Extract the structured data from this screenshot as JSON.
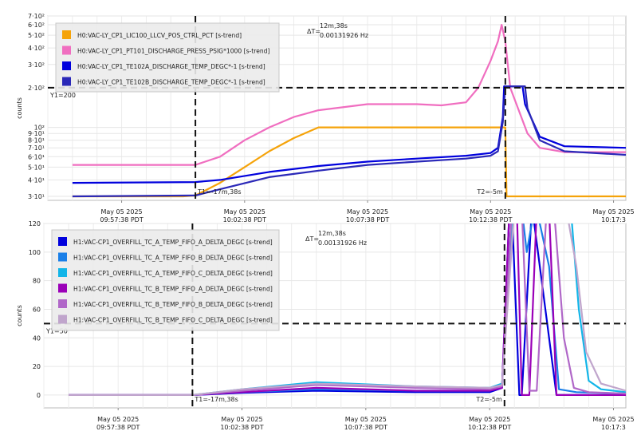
{
  "chart_data": [
    {
      "type": "line",
      "ylabel": "counts",
      "yscale": "log",
      "ylim": [
        28,
        700
      ],
      "x_tick_labels": [
        [
          "May 05 2025",
          "09:57:38 PDT"
        ],
        [
          "May 05 2025",
          "10:02:38 PDT"
        ],
        [
          "May 05 2025",
          "10:07:38 PDT"
        ],
        [
          "May 05 2025",
          "10:12:38 PDT"
        ],
        [
          "May 05 2025",
          "10:17:3"
        ]
      ],
      "y_ticks": [
        {
          "value": 30,
          "label": "3·10¹"
        },
        {
          "value": 40,
          "label": "4·10¹"
        },
        {
          "value": 50,
          "label": "5·10¹"
        },
        {
          "value": 60,
          "label": "6·10¹"
        },
        {
          "value": 70,
          "label": "7·10¹"
        },
        {
          "value": 80,
          "label": "8·10¹"
        },
        {
          "value": 90,
          "label": "9·10¹"
        },
        {
          "value": 100,
          "label": "10²"
        },
        {
          "value": 200,
          "label": "2·10²"
        },
        {
          "value": 300,
          "label": "3·10²"
        },
        {
          "value": 400,
          "label": "4·10²"
        },
        {
          "value": 500,
          "label": "5·10²"
        },
        {
          "value": 600,
          "label": "6·10²"
        },
        {
          "value": 700,
          "label": "7·10²"
        }
      ],
      "cursor_y": {
        "value": 200,
        "label": "Y1=200"
      },
      "cursor_t1_label": "T1=-17m,38s",
      "cursor_t2_label": "T2=-5m",
      "delta_label": "ΔT=",
      "delta_line1": "12m,38s",
      "delta_line2": "0.00131926 Hz",
      "series": [
        {
          "name": "H0:VAC-LY_CP1_LIC100_LLCV_POS_CTRL_PCT [s-trend]",
          "color": "#f5a30a",
          "x": [
            0,
            4.5,
            5,
            6,
            7,
            8,
            9,
            10,
            15,
            17.6,
            17.65,
            22.5
          ],
          "values": [
            30,
            30,
            30.5,
            38,
            50,
            66,
            83,
            100,
            100,
            100,
            30,
            30
          ]
        },
        {
          "name": "H0:VAC-LY_CP1_PT101_DISCHARGE_PRESS_PSIG*1000 [s-trend]",
          "color": "#f06ec0",
          "x": [
            0,
            5,
            6,
            7,
            8,
            9,
            10,
            12,
            14,
            15,
            16,
            16.5,
            17,
            17.3,
            17.45,
            17.6,
            17.8,
            18.5,
            19,
            20,
            22.5
          ],
          "values": [
            52,
            52,
            60,
            80,
            100,
            120,
            135,
            150,
            150,
            147,
            155,
            200,
            320,
            450,
            600,
            450,
            200,
            90,
            70,
            65,
            65
          ]
        },
        {
          "name": "H0:VAC-LY_CP1_TE102A_DISCHARGE_TEMP_DEGC*-1 [s-trend]",
          "color": "#0000dd",
          "x": [
            0,
            5,
            6,
            8,
            10,
            12,
            14,
            16,
            17,
            17.3,
            17.5,
            17.55,
            18.3,
            18.4,
            19,
            20,
            22.5
          ],
          "values": [
            38,
            38.5,
            40,
            46,
            51,
            55,
            58,
            61,
            64,
            70,
            120,
            205,
            205,
            150,
            85,
            72,
            70
          ]
        },
        {
          "name": "H0:VAC-LY_CP1_TE102B_DISCHARGE_TEMP_DEGC*-1 [s-trend]",
          "color": "#2a28b8",
          "x": [
            0,
            5,
            6,
            8,
            10,
            12,
            14,
            16,
            17,
            17.3,
            17.5,
            17.6,
            18.4,
            18.5,
            19,
            20,
            22.5
          ],
          "values": [
            30,
            30.5,
            34,
            42,
            47,
            52,
            55,
            58,
            61,
            66,
            110,
            205,
            205,
            140,
            80,
            66,
            62
          ]
        }
      ]
    },
    {
      "type": "line",
      "ylabel": "counts",
      "ylim": [
        -9,
        120
      ],
      "x_tick_labels": [
        [
          "May 05 2025",
          "09:57:38 PDT"
        ],
        [
          "May 05 2025",
          "10:02:38 PDT"
        ],
        [
          "May 05 2025",
          "10:07:38 PDT"
        ],
        [
          "May 05 2025",
          "10:12:38 PDT"
        ],
        [
          "May 05 2025",
          "10:17:3"
        ]
      ],
      "y_ticks": [
        {
          "value": 0,
          "label": "0"
        },
        {
          "value": 20,
          "label": "20"
        },
        {
          "value": 40,
          "label": "40"
        },
        {
          "value": 60,
          "label": "60"
        },
        {
          "value": 80,
          "label": "80"
        },
        {
          "value": 100,
          "label": "100"
        },
        {
          "value": 120,
          "label": "120"
        }
      ],
      "cursor_y": {
        "value": 50,
        "label": "Y1=50"
      },
      "cursor_t1_label": "T1=-17m,38s",
      "cursor_t2_label": "T2=-5m",
      "delta_label": "ΔT=",
      "delta_line1": "12m,38s",
      "delta_line2": "0.00131926 Hz",
      "series": [
        {
          "name": "H1:VAC-CP1_OVERFILL_TC_A_TEMP_FIFO_A_DELTA_DEGC [s-trend]",
          "color": "#0000dd",
          "x": [
            0,
            5,
            7,
            10,
            14,
            17,
            17.5,
            17.8,
            17.9,
            18.2,
            18.3,
            18.7,
            18.8,
            19.7,
            20.2,
            21,
            22.5
          ],
          "values": [
            0,
            0,
            1.5,
            3,
            2,
            2,
            5,
            130,
            130,
            0,
            0,
            130,
            120,
            0,
            0,
            0,
            0
          ]
        },
        {
          "name": "H1:VAC-CP1_OVERFILL_TC_A_TEMP_FIFO_B_DELTA_DEGC [s-trend]",
          "color": "#1a7fe8",
          "x": [
            0,
            5,
            7,
            10,
            14,
            17,
            17.5,
            17.9,
            18.3,
            18.5,
            18.7,
            18.9,
            19.4,
            19.8,
            20.5,
            22.5
          ],
          "values": [
            0,
            0,
            2,
            4,
            3,
            3,
            6,
            130,
            130,
            100,
            120,
            130,
            90,
            4,
            2,
            1
          ]
        },
        {
          "name": "H1:VAC-CP1_OVERFILL_TC_A_TEMP_FIFO_C_DELTA_DEGC [s-trend]",
          "color": "#12b5e8",
          "x": [
            0,
            5,
            7,
            10,
            14,
            17,
            17.5,
            17.95,
            20,
            20.3,
            20.6,
            21,
            21.5,
            22.5
          ],
          "values": [
            0,
            0,
            4,
            9,
            6,
            5,
            8,
            130,
            130,
            125,
            60,
            10,
            4,
            2
          ]
        },
        {
          "name": "H1:VAC-CP1_OVERFILL_TC_B_TEMP_FIFO_A_DELTA_DEGC [s-trend]",
          "color": "#9b00b8",
          "x": [
            0,
            5,
            7,
            10,
            14,
            17,
            17.5,
            17.8,
            18.1,
            18.3,
            18.6,
            18.9,
            19.4,
            19.7,
            20.1,
            22.5
          ],
          "values": [
            0,
            0,
            2,
            5,
            3,
            3,
            5,
            130,
            130,
            0,
            0,
            130,
            130,
            0,
            0,
            0
          ]
        },
        {
          "name": "H1:VAC-CP1_OVERFILL_TC_B_TEMP_FIFO_B_DELTA_DEGC [s-trend]",
          "color": "#b067c8",
          "x": [
            0,
            5,
            7,
            10,
            14,
            17,
            17.5,
            17.9,
            18.3,
            18.6,
            18.9,
            19.3,
            19.6,
            20,
            20.4,
            21,
            22.5
          ],
          "values": [
            0,
            0,
            3,
            7,
            5,
            4,
            6,
            130,
            130,
            3,
            3,
            130,
            130,
            40,
            5,
            2,
            1
          ]
        },
        {
          "name": "H1:VAC-CP1_OVERFILL_TC_B_TEMP_FIFO_C_DELTA_DEGC [s-trend]",
          "color": "#c0a5cc",
          "x": [
            0,
            5,
            7,
            10,
            14,
            17,
            17.5,
            18,
            20.1,
            20.5,
            20.9,
            21.5,
            22.5
          ],
          "values": [
            0,
            0,
            4,
            8,
            6,
            5,
            7,
            130,
            130,
            90,
            30,
            8,
            3
          ]
        }
      ]
    }
  ]
}
